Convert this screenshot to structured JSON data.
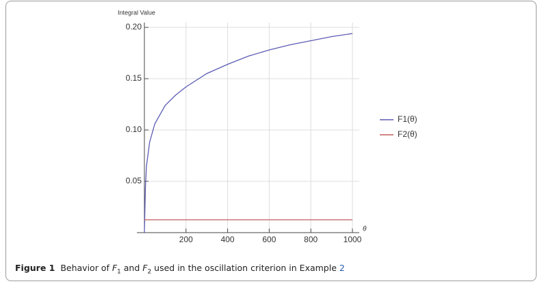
{
  "chart_data": {
    "type": "line",
    "y_label": "Integral Value",
    "x_label": "θ",
    "x": [
      0,
      5,
      10,
      25,
      50,
      100,
      150,
      200,
      300,
      400,
      500,
      600,
      700,
      800,
      900,
      1000
    ],
    "series": [
      {
        "name": "F1(θ)",
        "color": "#5b5bb5",
        "values": [
          0,
          0.045,
          0.065,
          0.088,
          0.106,
          0.124,
          0.134,
          0.142,
          0.155,
          0.164,
          0.172,
          0.178,
          0.183,
          0.187,
          0.191,
          0.194
        ]
      },
      {
        "name": "F2(θ)",
        "color": "#c25b5b",
        "values": [
          0.0125,
          0.0125,
          0.0125,
          0.0125,
          0.0125,
          0.0125,
          0.0125,
          0.0125,
          0.0125,
          0.0125,
          0.0125,
          0.0125,
          0.0125,
          0.0125,
          0.0125,
          0.0125
        ]
      }
    ],
    "xlim": [
      0,
      1000
    ],
    "ylim": [
      0,
      0.2
    ],
    "xticks": [
      200,
      400,
      600,
      800,
      1000
    ],
    "yticks": [
      0.05,
      {
        "value": 0.1,
        "label": "0.10"
      },
      0.15,
      {
        "value": 0.2,
        "label": "0.20"
      }
    ],
    "grid": true,
    "legend": "right"
  },
  "caption": {
    "label": "Figure 1",
    "parts": [
      "Behavior of ",
      "F",
      "1",
      " and ",
      "F",
      "2",
      " used in the oscillation criterion in Example ",
      "2"
    ]
  }
}
